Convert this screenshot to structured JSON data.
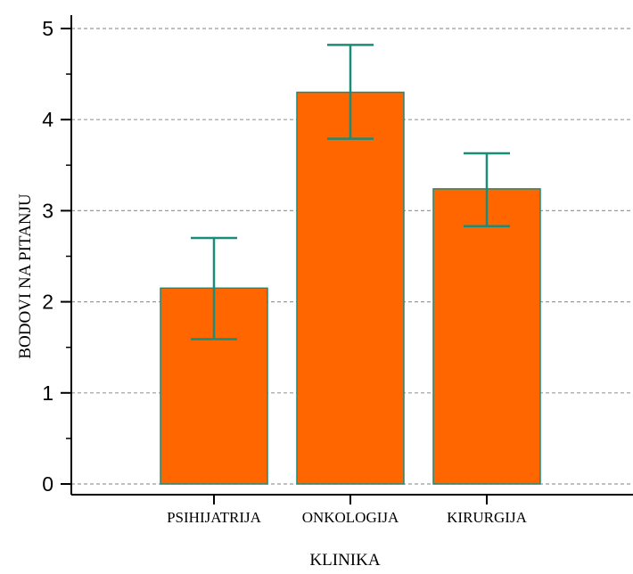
{
  "chart_data": {
    "type": "bar",
    "title": "",
    "xlabel": "KLINIKA",
    "ylabel": "BODOVI NA PITANJU",
    "categories": [
      "PSIHIJATRIJA",
      "ONKOLOGIJA",
      "KIRURGIJA"
    ],
    "values": [
      2.15,
      4.3,
      3.24
    ],
    "error_bars": [
      {
        "low": 1.59,
        "high": 2.7
      },
      {
        "low": 3.79,
        "high": 4.82
      },
      {
        "low": 2.83,
        "high": 3.63
      }
    ],
    "ylim": [
      0,
      5
    ],
    "yticks": [
      "0",
      "1",
      "2",
      "3",
      "4",
      "5"
    ],
    "grid": true,
    "bar_color": "#ff6600",
    "bar_edge_color": "#1a8c7a",
    "errorbar_color": "#1a8c7a"
  }
}
